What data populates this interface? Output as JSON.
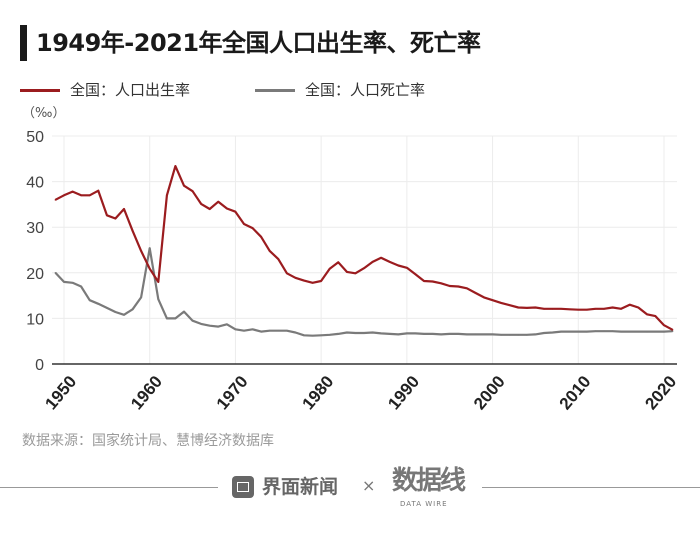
{
  "title": "1949年-2021年全国人口出生率、死亡率",
  "source": "数据来源：国家统计局、慧博经济数据库",
  "footer": {
    "brand_left": "界面新闻",
    "times": "×",
    "brand_right": "数据线",
    "brand_right_sub": "DATA WIRE"
  },
  "chart_data": {
    "type": "line",
    "title": "1949年-2021年全国人口出生率、死亡率",
    "ylabel": "（‰）",
    "ylim": [
      0,
      50
    ],
    "yticks": [
      0,
      10,
      20,
      30,
      40,
      50
    ],
    "xticks": [
      1950,
      1960,
      1970,
      1980,
      1990,
      2000,
      2010,
      2020
    ],
    "xlim": [
      1949,
      2021
    ],
    "grid": true,
    "legend": "top-left",
    "x": [
      1949,
      1950,
      1951,
      1952,
      1953,
      1954,
      1955,
      1956,
      1957,
      1958,
      1959,
      1960,
      1961,
      1962,
      1963,
      1964,
      1965,
      1966,
      1967,
      1968,
      1969,
      1970,
      1971,
      1972,
      1973,
      1974,
      1975,
      1976,
      1977,
      1978,
      1979,
      1980,
      1981,
      1982,
      1983,
      1984,
      1985,
      1986,
      1987,
      1988,
      1989,
      1990,
      1991,
      1992,
      1993,
      1994,
      1995,
      1996,
      1997,
      1998,
      1999,
      2000,
      2001,
      2002,
      2003,
      2004,
      2005,
      2006,
      2007,
      2008,
      2009,
      2010,
      2011,
      2012,
      2013,
      2014,
      2015,
      2016,
      2017,
      2018,
      2019,
      2020,
      2021
    ],
    "series": [
      {
        "name": "全国：人口出生率",
        "color": "#9b1c1f",
        "values": [
          36.0,
          37.0,
          37.8,
          37.0,
          37.0,
          38.0,
          32.6,
          31.9,
          34.0,
          29.2,
          24.8,
          20.9,
          18.0,
          37.0,
          43.4,
          39.1,
          37.9,
          35.1,
          34.0,
          35.6,
          34.1,
          33.4,
          30.7,
          29.8,
          27.9,
          24.8,
          23.0,
          19.9,
          18.9,
          18.3,
          17.8,
          18.2,
          20.9,
          22.3,
          20.2,
          19.9,
          21.0,
          22.4,
          23.3,
          22.4,
          21.6,
          21.1,
          19.7,
          18.2,
          18.1,
          17.7,
          17.1,
          17.0,
          16.6,
          15.6,
          14.6,
          14.0,
          13.4,
          12.9,
          12.4,
          12.3,
          12.4,
          12.1,
          12.1,
          12.1,
          12.0,
          11.9,
          11.9,
          12.1,
          12.1,
          12.4,
          12.1,
          13.0,
          12.4,
          10.9,
          10.5,
          8.5,
          7.5
        ]
      },
      {
        "name": "全国：人口死亡率",
        "color": "#7a7a7a",
        "values": [
          20.0,
          18.0,
          17.8,
          17.0,
          14.0,
          13.2,
          12.3,
          11.4,
          10.8,
          12.0,
          14.6,
          25.4,
          14.2,
          10.0,
          10.0,
          11.5,
          9.5,
          8.8,
          8.4,
          8.2,
          8.7,
          7.6,
          7.3,
          7.6,
          7.1,
          7.3,
          7.3,
          7.3,
          6.9,
          6.3,
          6.2,
          6.3,
          6.4,
          6.6,
          6.9,
          6.8,
          6.8,
          6.9,
          6.7,
          6.6,
          6.5,
          6.7,
          6.7,
          6.6,
          6.6,
          6.5,
          6.6,
          6.6,
          6.5,
          6.5,
          6.5,
          6.5,
          6.4,
          6.4,
          6.4,
          6.4,
          6.5,
          6.8,
          6.9,
          7.1,
          7.1,
          7.1,
          7.1,
          7.2,
          7.2,
          7.2,
          7.1,
          7.1,
          7.1,
          7.1,
          7.1,
          7.1,
          7.2
        ]
      }
    ]
  }
}
